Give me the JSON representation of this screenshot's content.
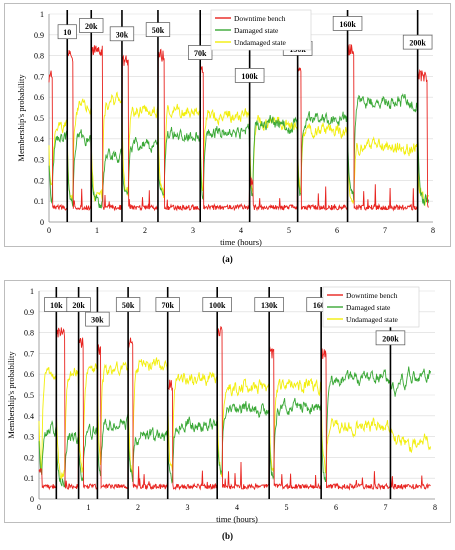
{
  "chart_data": [
    {
      "type": "line",
      "panel_label": "(a)",
      "xlabel": "time (hours)",
      "ylabel": "Membership's probability",
      "xlim": [
        0,
        8
      ],
      "ylim": [
        0,
        1
      ],
      "x_ticks": [
        "0",
        "1",
        "2",
        "3",
        "4",
        "5",
        "6",
        "7",
        "8"
      ],
      "y_ticks": [
        "0",
        "0.1",
        "0.2",
        "0.3",
        "0.4",
        "0.5",
        "0.6",
        "0.7",
        "0.8",
        "0.9",
        "1"
      ],
      "grid": true,
      "legend_position": "top-right",
      "series": [
        {
          "name": "Downtime bench",
          "color": "#e8231f"
        },
        {
          "name": "Damaged state",
          "color": "#3aa836"
        },
        {
          "name": "Undamaged state",
          "color": "#f2ee0c"
        }
      ],
      "cycles": [
        {
          "label": "10",
          "x": 0.38,
          "label_y": 0.91
        },
        {
          "label": "20k",
          "x": 0.88,
          "label_y": 0.94
        },
        {
          "label": "30k",
          "x": 1.52,
          "label_y": 0.9
        },
        {
          "label": "50k",
          "x": 2.27,
          "label_y": 0.92
        },
        {
          "label": "70k",
          "x": 3.15,
          "label_y": 0.81
        },
        {
          "label": "100k",
          "x": 4.18,
          "label_y": 0.7
        },
        {
          "label": "130k",
          "x": 5.18,
          "label_y": 0.83
        },
        {
          "label": "160k",
          "x": 6.22,
          "label_y": 0.95
        },
        {
          "label": "200k",
          "x": 7.68,
          "label_y": 0.86
        }
      ],
      "regimes": [
        {
          "x": [
            0.0,
            0.38
          ],
          "damaged": 0.4,
          "undamaged": 0.45
        },
        {
          "x": [
            0.5,
            0.88
          ],
          "damaged": 0.4,
          "undamaged": 0.55
        },
        {
          "x": [
            1.12,
            1.52
          ],
          "damaged": 0.32,
          "undamaged": 0.58
        },
        {
          "x": [
            1.65,
            2.27
          ],
          "damaged": 0.37,
          "undamaged": 0.54
        },
        {
          "x": [
            2.4,
            3.15
          ],
          "damaged": 0.42,
          "undamaged": 0.54
        },
        {
          "x": [
            3.22,
            4.18
          ],
          "damaged": 0.44,
          "undamaged": 0.51
        },
        {
          "x": [
            4.25,
            5.18
          ],
          "damaged": 0.47,
          "undamaged": 0.48
        },
        {
          "x": [
            5.25,
            6.22
          ],
          "damaged": 0.49,
          "undamaged": 0.44
        },
        {
          "x": [
            6.35,
            7.68
          ],
          "damaged": 0.58,
          "undamaged": 0.36
        }
      ],
      "downtime_peaks": [
        {
          "x": [
            0.0,
            0.07
          ],
          "value": 0.7
        },
        {
          "x": [
            0.38,
            0.5
          ],
          "value": 0.8
        },
        {
          "x": [
            0.88,
            1.12
          ],
          "value": 0.82
        },
        {
          "x": [
            1.52,
            1.65
          ],
          "value": 0.78
        },
        {
          "x": [
            2.27,
            2.4
          ],
          "value": 0.8
        },
        {
          "x": [
            3.15,
            3.22
          ],
          "value": 0.72
        },
        {
          "x": [
            4.18,
            4.25
          ],
          "value": 0.2
        },
        {
          "x": [
            5.18,
            5.25
          ],
          "value": 0.75
        },
        {
          "x": [
            6.22,
            6.35
          ],
          "value": 0.83
        },
        {
          "x": [
            7.68,
            7.88
          ],
          "value": 0.7
        }
      ],
      "downtime_baseline": 0.07
    },
    {
      "type": "line",
      "panel_label": "(b)",
      "xlabel": "time (hours)",
      "ylabel": "Membership's probability",
      "xlim": [
        0,
        8
      ],
      "ylim": [
        0,
        1
      ],
      "x_ticks": [
        "0",
        "1",
        "2",
        "3",
        "4",
        "5",
        "6",
        "7",
        "8"
      ],
      "y_ticks": [
        "0",
        "0.1",
        "0.2",
        "0.3",
        "0.4",
        "0.5",
        "0.6",
        "0.7",
        "0.8",
        "0.9",
        "1"
      ],
      "grid": true,
      "legend_position": "top-right",
      "series": [
        {
          "name": "Downtime bench",
          "color": "#e8231f"
        },
        {
          "name": "Damaged state",
          "color": "#3aa836"
        },
        {
          "name": "Undamaged state",
          "color": "#f2ee0c"
        }
      ],
      "cycles": [
        {
          "label": "10k",
          "x": 0.35,
          "label_y": 0.93
        },
        {
          "label": "20k",
          "x": 0.8,
          "label_y": 0.93
        },
        {
          "label": "30k",
          "x": 1.18,
          "label_y": 0.86
        },
        {
          "label": "50k",
          "x": 1.8,
          "label_y": 0.93
        },
        {
          "label": "70k",
          "x": 2.6,
          "label_y": 0.93
        },
        {
          "label": "100k",
          "x": 3.6,
          "label_y": 0.93
        },
        {
          "label": "130k",
          "x": 4.65,
          "label_y": 0.93
        },
        {
          "label": "160k",
          "x": 5.7,
          "label_y": 0.93
        },
        {
          "label": "200k",
          "x": 7.1,
          "label_y": 0.77
        }
      ],
      "regimes": [
        {
          "x": [
            0.0,
            0.35
          ],
          "damaged": 0.33,
          "undamaged": 0.6
        },
        {
          "x": [
            0.52,
            0.8
          ],
          "damaged": 0.3,
          "undamaged": 0.62
        },
        {
          "x": [
            0.9,
            1.18
          ],
          "damaged": 0.32,
          "undamaged": 0.63
        },
        {
          "x": [
            1.25,
            1.8
          ],
          "damaged": 0.36,
          "undamaged": 0.62
        },
        {
          "x": [
            1.9,
            2.6
          ],
          "damaged": 0.3,
          "undamaged": 0.64
        },
        {
          "x": [
            2.7,
            3.6
          ],
          "damaged": 0.36,
          "undamaged": 0.58
        },
        {
          "x": [
            3.7,
            4.65
          ],
          "damaged": 0.43,
          "undamaged": 0.54
        },
        {
          "x": [
            4.75,
            5.7
          ],
          "damaged": 0.44,
          "undamaged": 0.55
        },
        {
          "x": [
            5.8,
            7.1
          ],
          "damaged": 0.58,
          "undamaged": 0.35
        }
      ],
      "downtime_peaks": [
        {
          "x": [
            0.0,
            0.06
          ],
          "value": 0.13
        },
        {
          "x": [
            0.35,
            0.52
          ],
          "value": 0.8
        },
        {
          "x": [
            0.8,
            0.9
          ],
          "value": 0.75
        },
        {
          "x": [
            1.18,
            1.25
          ],
          "value": 0.72
        },
        {
          "x": [
            1.8,
            1.9
          ],
          "value": 0.75
        },
        {
          "x": [
            2.6,
            2.7
          ],
          "value": 0.55
        },
        {
          "x": [
            3.6,
            3.7
          ],
          "value": 0.8
        },
        {
          "x": [
            4.65,
            4.75
          ],
          "value": 0.7
        },
        {
          "x": [
            5.7,
            5.8
          ],
          "value": 0.7
        }
      ],
      "downtime_baseline": 0.06
    }
  ]
}
